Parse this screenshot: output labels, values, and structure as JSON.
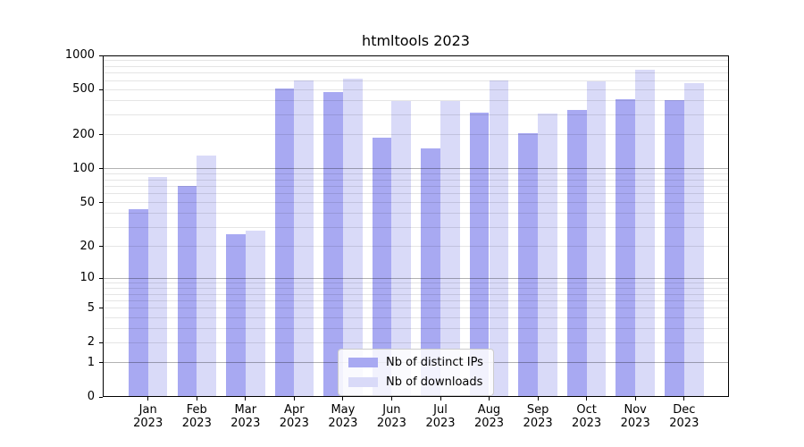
{
  "title": "htmltools 2023",
  "colors": {
    "ips_bar": "#a8a9f2",
    "downloads_bar": "#d9daf8",
    "major_grid": "rgba(0,0,0,0.30)",
    "minor_grid": "rgba(0,0,0,0.10)",
    "spine": "#000000",
    "background": "#ffffff"
  },
  "legend": {
    "items": [
      {
        "label": "Nb of distinct IPs",
        "color": "#a8a9f2",
        "key": "distinct-ips"
      },
      {
        "label": "Nb of downloads",
        "color": "#d9daf8",
        "key": "downloads"
      }
    ]
  },
  "chart_data": {
    "type": "bar",
    "title": "htmltools 2023",
    "scale": "log1p",
    "ylim": [
      0,
      1000
    ],
    "grid": "horizontal",
    "legend_position": "lower center",
    "categories": [
      "Jan 2023",
      "Feb 2023",
      "Mar 2023",
      "Apr 2023",
      "May 2023",
      "Jun 2023",
      "Jul 2023",
      "Aug 2023",
      "Sep 2023",
      "Oct 2023",
      "Nov 2023",
      "Dec 2023"
    ],
    "series": [
      {
        "name": "Nb of distinct IPs",
        "key": "distinct-ips",
        "color": "#a8a9f2",
        "values": [
          44,
          70,
          26,
          510,
          475,
          188,
          153,
          315,
          207,
          332,
          414,
          403
        ]
      },
      {
        "name": "Nb of downloads",
        "key": "downloads",
        "color": "#d9daf8",
        "values": [
          85,
          131,
          28,
          605,
          620,
          400,
          395,
          605,
          310,
          595,
          745,
          575
        ]
      }
    ],
    "y_ticks": [
      1000,
      500,
      200,
      100,
      50,
      20,
      10,
      5,
      2,
      1,
      0
    ],
    "grid_major": [
      1,
      10,
      100,
      1000
    ],
    "grid_minor": [
      2,
      3,
      4,
      5,
      6,
      7,
      8,
      9,
      20,
      30,
      40,
      50,
      60,
      70,
      80,
      90,
      200,
      300,
      400,
      500,
      600,
      700,
      800,
      900
    ]
  }
}
